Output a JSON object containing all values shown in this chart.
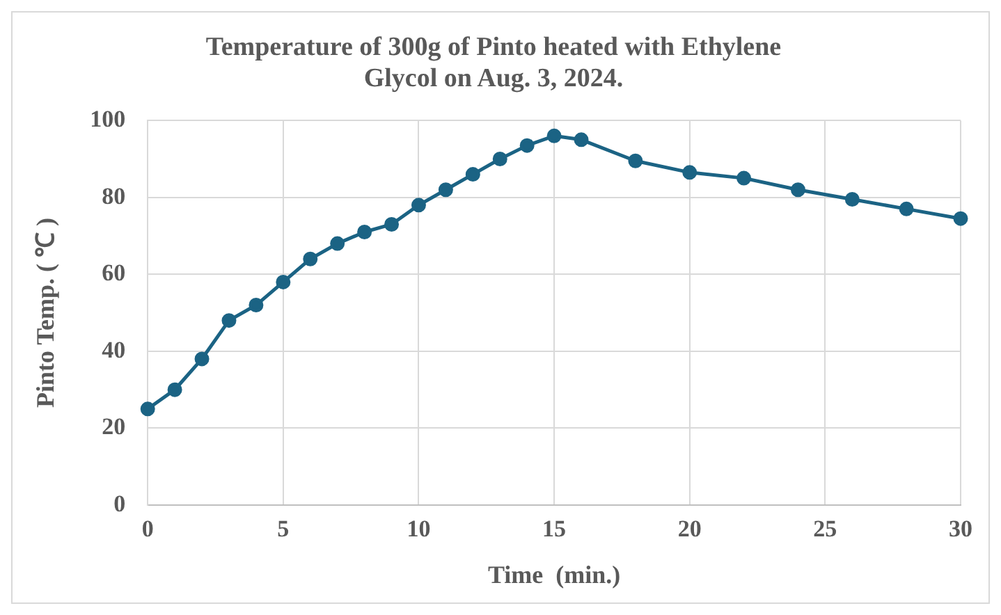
{
  "chart_data": {
    "type": "line",
    "title": "Temperature of 300g of Pinto heated with Ethylene Glycol on Aug. 3, 2024.",
    "xlabel": "Time  (min.)",
    "ylabel": "Pinto Temp. ( ℃ )",
    "x": [
      0,
      1,
      2,
      3,
      4,
      5,
      6,
      7,
      8,
      9,
      10,
      11,
      12,
      13,
      14,
      15,
      16,
      18,
      20,
      22,
      24,
      26,
      28,
      30
    ],
    "series": [
      {
        "color": "#1b6384",
        "values": [
          25,
          30,
          38,
          48,
          52,
          58,
          64,
          68,
          71,
          73,
          78,
          82,
          86,
          90,
          93.5,
          96,
          95,
          89.5,
          86.5,
          85,
          82,
          79.5,
          77,
          74.5
        ]
      }
    ],
    "xlim": [
      0,
      30
    ],
    "xticks": [
      0,
      5,
      10,
      15,
      20,
      25,
      30
    ],
    "ylim": [
      0,
      100
    ],
    "yticks": [
      0,
      20,
      40,
      60,
      80,
      100
    ],
    "grid": true,
    "legend": false,
    "marker": "circle",
    "line_style": "solid"
  }
}
